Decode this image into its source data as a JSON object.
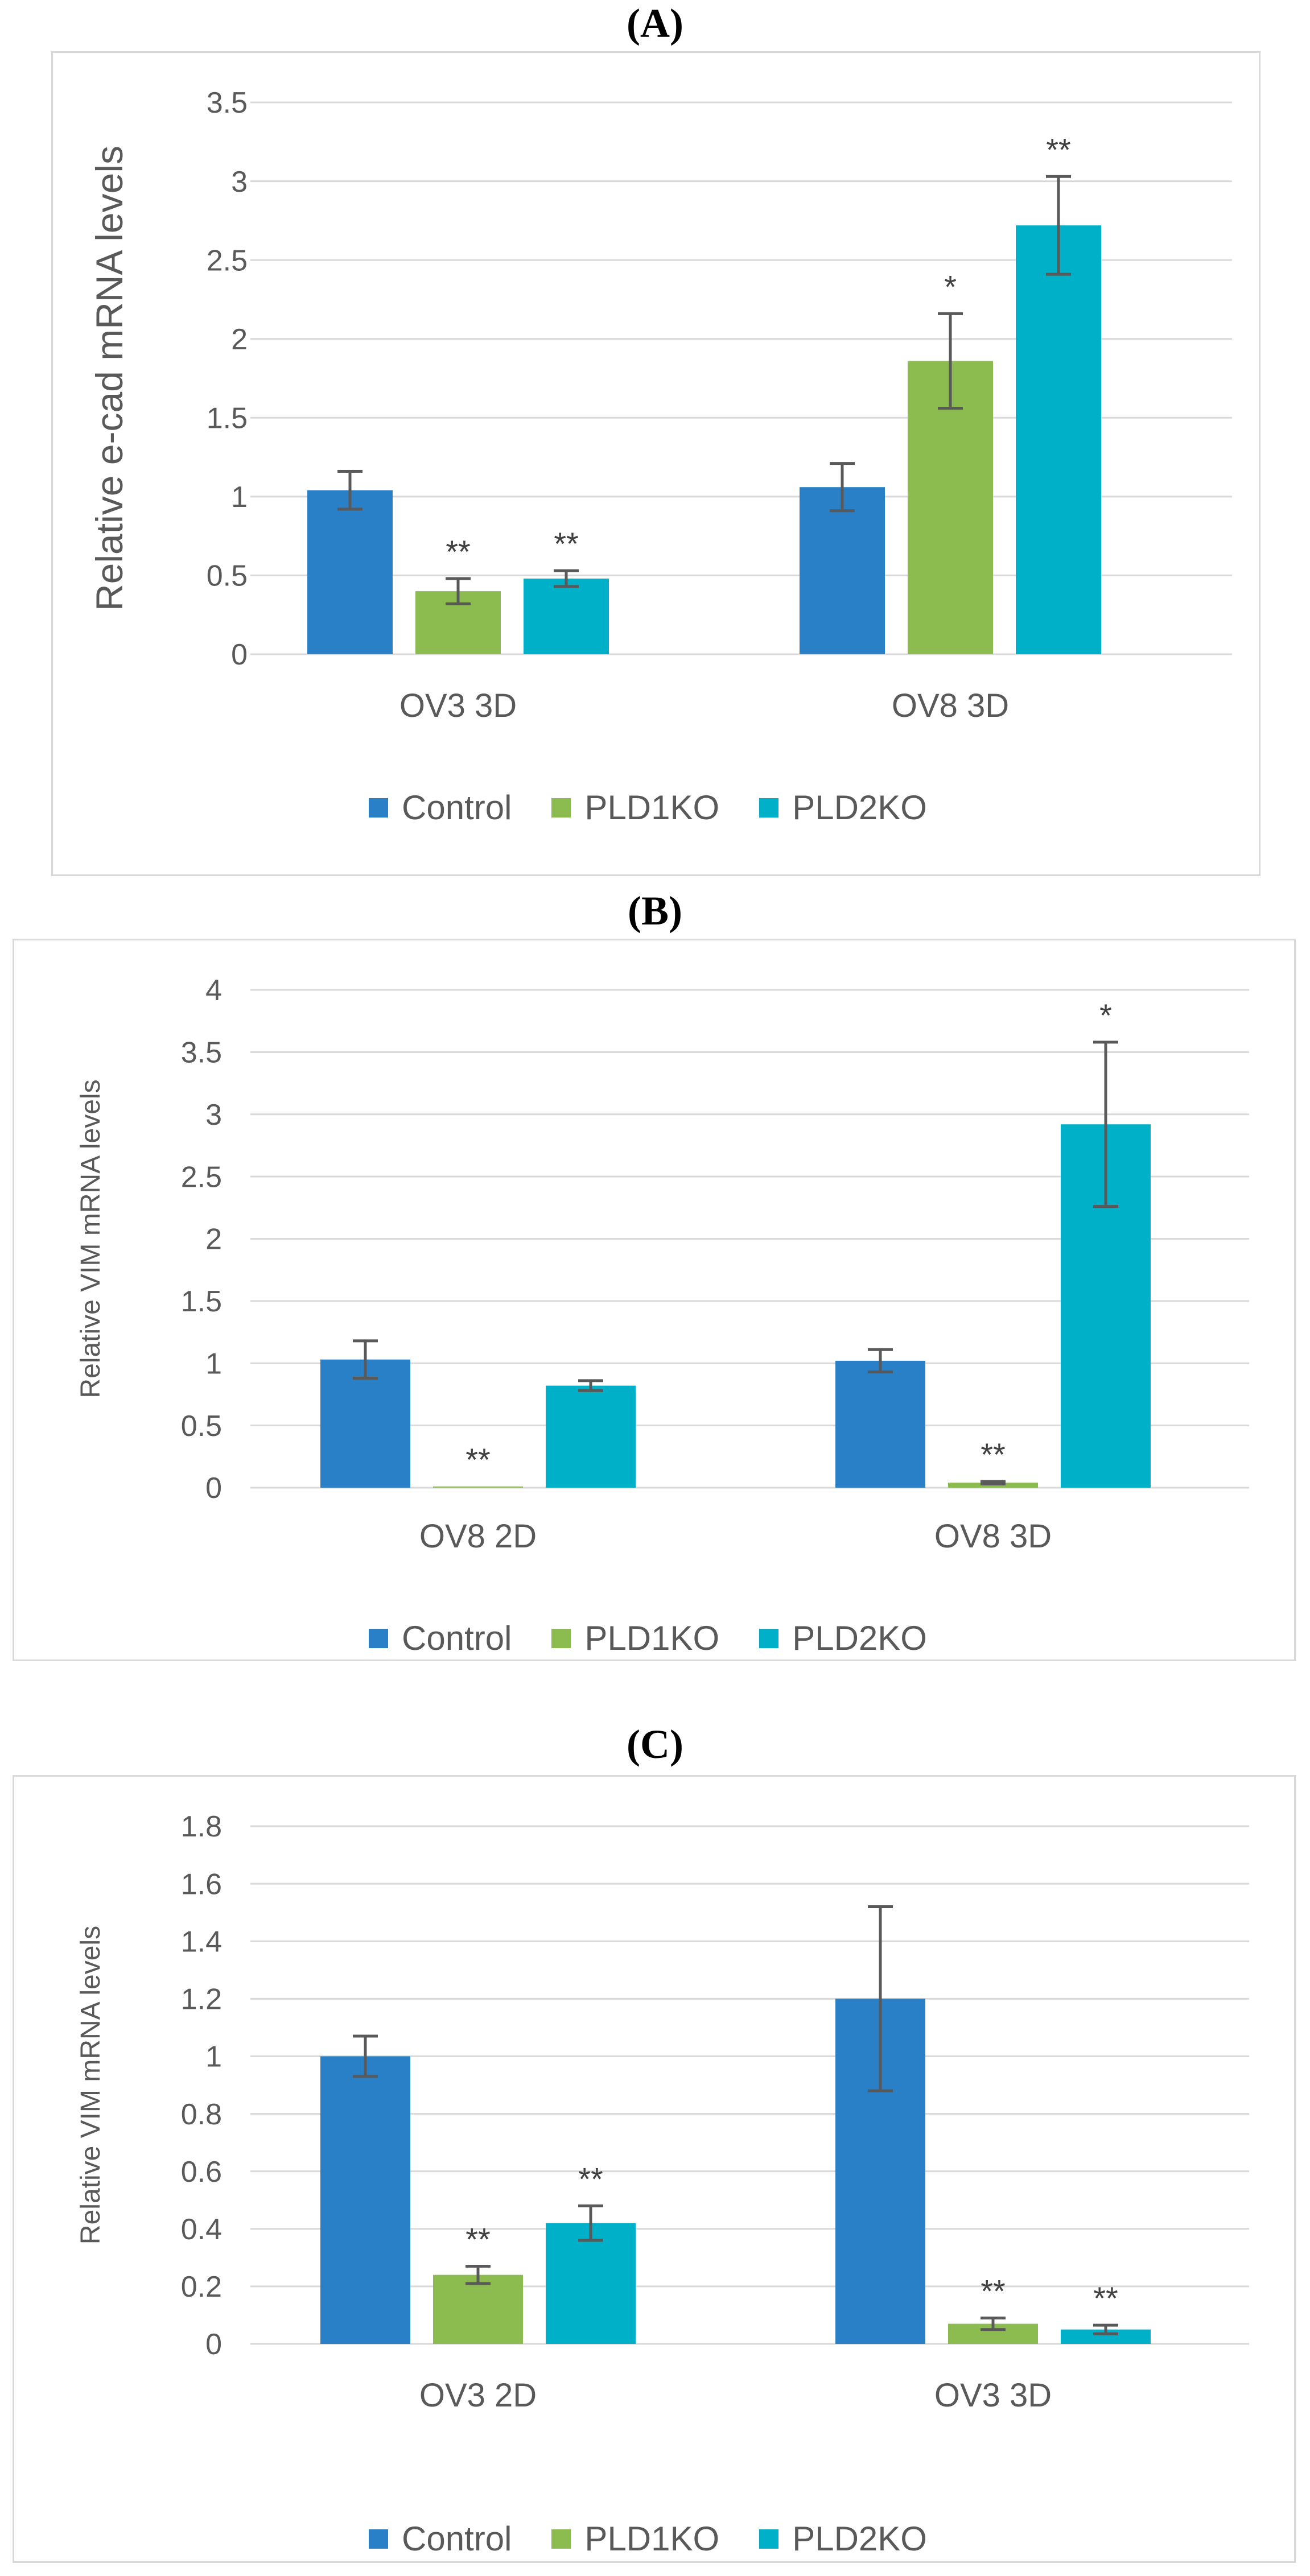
{
  "colors": {
    "control": "#2980c6",
    "pld1ko": "#8cbb4f",
    "pld2ko": "#00b0c8",
    "grid": "#d9d9d9",
    "text": "#595959"
  },
  "chart_data": [
    {
      "panel": "(A)",
      "type": "bar",
      "ylabel": "Relative e-cad mRNA levels",
      "ylim": [
        0,
        3.5
      ],
      "yticks": [
        "0",
        "0.5",
        "1",
        "1.5",
        "2",
        "2.5",
        "3",
        "3.5"
      ],
      "categories": [
        "OV3 3D",
        "OV8 3D"
      ],
      "legend": [
        "Control",
        "PLD1KO",
        "PLD2KO"
      ],
      "series": [
        {
          "name": "Control",
          "values": [
            1.04,
            1.06
          ],
          "errors": [
            0.12,
            0.15
          ],
          "sig": [
            "",
            ""
          ]
        },
        {
          "name": "PLD1KO",
          "values": [
            0.4,
            1.86
          ],
          "errors": [
            0.08,
            0.3
          ],
          "sig": [
            "**",
            "*"
          ]
        },
        {
          "name": "PLD2KO",
          "values": [
            0.48,
            2.72
          ],
          "errors": [
            0.05,
            0.31
          ],
          "sig": [
            "**",
            "**"
          ]
        }
      ]
    },
    {
      "panel": "(B)",
      "type": "bar",
      "ylabel": "Relative VIM mRNA levels",
      "ylim": [
        0,
        4
      ],
      "yticks": [
        "0",
        "0.5",
        "1",
        "1.5",
        "2",
        "2.5",
        "3",
        "3.5",
        "4"
      ],
      "categories": [
        "OV8 2D",
        "OV8 3D"
      ],
      "legend": [
        "Control",
        "PLD1KO",
        "PLD2KO"
      ],
      "series": [
        {
          "name": "Control",
          "values": [
            1.03,
            1.02
          ],
          "errors": [
            0.15,
            0.09
          ],
          "sig": [
            "",
            ""
          ]
        },
        {
          "name": "PLD1KO",
          "values": [
            0.01,
            0.04
          ],
          "errors": [
            0.0,
            0.01
          ],
          "sig": [
            "**",
            "**"
          ]
        },
        {
          "name": "PLD2KO",
          "values": [
            0.82,
            2.92
          ],
          "errors": [
            0.04,
            0.66
          ],
          "sig": [
            "",
            "*"
          ]
        }
      ]
    },
    {
      "panel": "(C)",
      "type": "bar",
      "ylabel": "Relative VIM mRNA levels",
      "ylim": [
        0,
        1.8
      ],
      "yticks": [
        "0",
        "0.2",
        "0.4",
        "0.6",
        "0.8",
        "1",
        "1.2",
        "1.4",
        "1.6",
        "1.8"
      ],
      "categories": [
        "OV3 2D",
        "OV3 3D"
      ],
      "legend": [
        "Control",
        "PLD1KO",
        "PLD2KO"
      ],
      "series": [
        {
          "name": "Control",
          "values": [
            1.0,
            1.2
          ],
          "errors": [
            0.07,
            0.32
          ],
          "sig": [
            "",
            ""
          ]
        },
        {
          "name": "PLD1KO",
          "values": [
            0.24,
            0.07
          ],
          "errors": [
            0.03,
            0.02
          ],
          "sig": [
            "**",
            "**"
          ]
        },
        {
          "name": "PLD2KO",
          "values": [
            0.42,
            0.05
          ],
          "errors": [
            0.06,
            0.015
          ],
          "sig": [
            "**",
            "**"
          ]
        }
      ]
    }
  ]
}
